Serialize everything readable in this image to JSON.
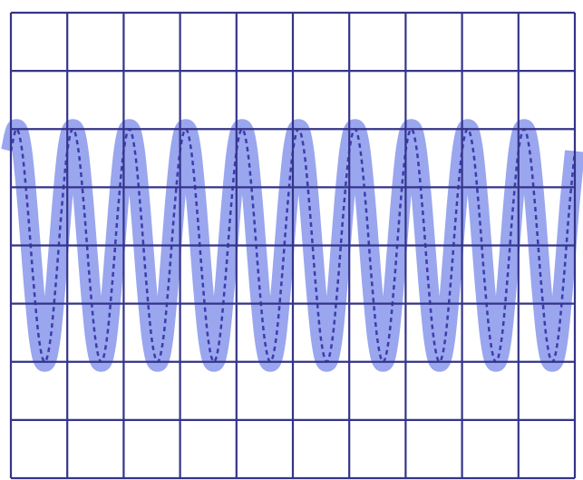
{
  "chart_data": {
    "type": "line",
    "x": [
      0,
      0.1,
      0.2,
      0.3,
      0.4,
      0.5,
      0.6,
      0.7,
      0.8,
      0.9,
      1,
      1.1,
      1.2,
      1.3,
      1.4,
      1.5,
      1.6,
      1.7,
      1.8,
      1.9,
      2,
      2.1,
      2.2,
      2.3,
      2.4,
      2.5,
      2.6,
      2.7,
      2.8,
      2.9,
      3,
      3.1,
      3.2,
      3.3,
      3.4,
      3.5,
      3.6,
      3.7,
      3.8,
      3.9,
      4,
      4.1,
      4.2,
      4.3,
      4.4,
      4.5,
      4.6,
      4.7,
      4.8,
      4.9,
      5,
      5.1,
      5.2,
      5.3,
      5.4,
      5.5,
      5.6,
      5.7,
      5.8,
      5.9,
      6,
      6.1,
      6.2,
      6.3,
      6.4,
      6.5,
      6.6,
      6.7,
      6.8,
      6.9,
      7,
      7.1,
      7.2,
      7.3,
      7.4,
      7.5,
      7.6,
      7.7,
      7.8,
      7.9,
      8,
      8.1,
      8.2,
      8.3,
      8.4,
      8.5,
      8.6,
      8.7,
      8.8,
      8.9,
      9,
      9.1,
      9.2,
      9.3,
      9.4,
      9.5,
      9.6,
      9.7,
      9.8,
      9.9,
      10
    ],
    "series": [
      {
        "color": "#2a2aa0",
        "values": [
          1.62,
          2,
          1.62,
          0.62,
          -0.62,
          -1.62,
          -2,
          -1.62,
          -0.62,
          0.62,
          1.62,
          2,
          1.62,
          0.62,
          -0.62,
          -1.62,
          -2,
          -1.62,
          -0.62,
          0.62,
          1.62,
          2,
          1.62,
          0.62,
          -0.62,
          -1.62,
          -2,
          -1.62,
          -0.62,
          0.62,
          1.62,
          2,
          1.62,
          0.62,
          -0.62,
          -1.62,
          -2,
          -1.62,
          -0.62,
          0.62,
          1.62,
          2,
          1.62,
          0.62,
          -0.62,
          -1.62,
          -2,
          -1.62,
          -0.62,
          0.62,
          1.62,
          2,
          1.62,
          0.62,
          -0.62,
          -1.62,
          -2,
          -1.62,
          -0.62,
          0.62,
          1.62,
          2,
          1.62,
          0.62,
          -0.62,
          -1.62,
          -2,
          -1.62,
          -0.62,
          0.62,
          1.62,
          2,
          1.62,
          0.62,
          -0.62,
          -1.62,
          -2,
          -1.62,
          -0.62,
          0.62,
          1.62,
          2,
          1.62,
          0.62,
          -0.62,
          -1.62,
          -2,
          -1.62,
          -0.62,
          0.62,
          1.62,
          2,
          1.62,
          0.62,
          -0.62,
          -1.62,
          -2,
          -1.62,
          -0.62,
          0.62,
          1.62
        ]
      }
    ],
    "xlim": [
      0,
      10
    ],
    "xticks": [
      0,
      1,
      2,
      3,
      4,
      5,
      6,
      7,
      8,
      9,
      10
    ],
    "ylim": [
      -4,
      4
    ],
    "yticks": [
      -4,
      -3,
      -2,
      -1,
      0,
      1,
      2,
      3,
      4
    ],
    "grid": true,
    "grid_color": "#34348a",
    "band_color": "#9aa6ee"
  }
}
